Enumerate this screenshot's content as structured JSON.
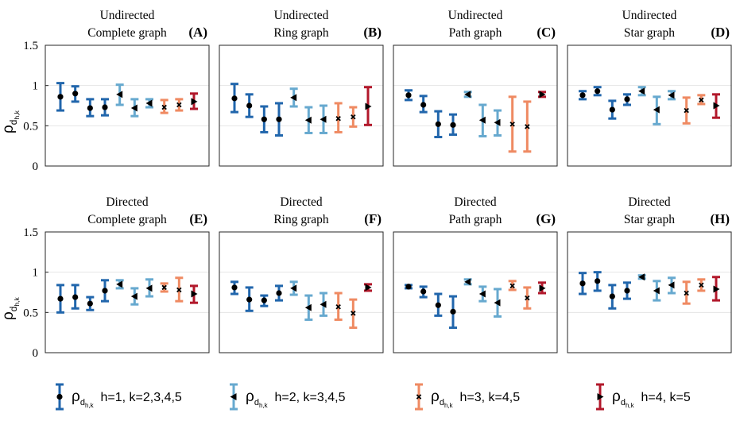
{
  "chart_data": {
    "type": "errorbar",
    "ylim": [
      0,
      1.5
    ],
    "yticks": [
      "0",
      "0.5",
      "1",
      "1.5"
    ],
    "ylabel": "ρ",
    "ylabel_sub": "d",
    "ylabel_subsub": "h,k",
    "grid": true,
    "group_colors": [
      "#2166ac",
      "#67a9cf",
      "#ef8a62",
      "#b2182b"
    ],
    "group_markers": [
      "circle",
      "triangle-left",
      "x",
      "triangle-right"
    ],
    "panels": [
      {
        "id": "A",
        "label": "(A)",
        "title1": "Undirected",
        "title2": "Complete graph",
        "points": [
          {
            "g": 0,
            "m": 0.86,
            "lo": 0.69,
            "hi": 1.03
          },
          {
            "g": 0,
            "m": 0.9,
            "lo": 0.8,
            "hi": 0.99
          },
          {
            "g": 0,
            "m": 0.72,
            "lo": 0.62,
            "hi": 0.83
          },
          {
            "g": 0,
            "m": 0.73,
            "lo": 0.63,
            "hi": 0.83
          },
          {
            "g": 1,
            "m": 0.89,
            "lo": 0.76,
            "hi": 1.01
          },
          {
            "g": 1,
            "m": 0.72,
            "lo": 0.62,
            "hi": 0.83
          },
          {
            "g": 1,
            "m": 0.78,
            "lo": 0.73,
            "hi": 0.83
          },
          {
            "g": 2,
            "m": 0.73,
            "lo": 0.66,
            "hi": 0.82
          },
          {
            "g": 2,
            "m": 0.76,
            "lo": 0.69,
            "hi": 0.83
          },
          {
            "g": 3,
            "m": 0.8,
            "lo": 0.71,
            "hi": 0.9
          }
        ]
      },
      {
        "id": "B",
        "label": "(B)",
        "title1": "Undirected",
        "title2": "Ring graph",
        "points": [
          {
            "g": 0,
            "m": 0.84,
            "lo": 0.67,
            "hi": 1.02
          },
          {
            "g": 0,
            "m": 0.75,
            "lo": 0.61,
            "hi": 0.89
          },
          {
            "g": 0,
            "m": 0.58,
            "lo": 0.42,
            "hi": 0.74
          },
          {
            "g": 0,
            "m": 0.58,
            "lo": 0.38,
            "hi": 0.78
          },
          {
            "g": 1,
            "m": 0.85,
            "lo": 0.74,
            "hi": 0.96
          },
          {
            "g": 1,
            "m": 0.57,
            "lo": 0.41,
            "hi": 0.73
          },
          {
            "g": 1,
            "m": 0.58,
            "lo": 0.41,
            "hi": 0.75
          },
          {
            "g": 2,
            "m": 0.59,
            "lo": 0.42,
            "hi": 0.78
          },
          {
            "g": 2,
            "m": 0.61,
            "lo": 0.49,
            "hi": 0.73
          },
          {
            "g": 3,
            "m": 0.74,
            "lo": 0.51,
            "hi": 0.98
          }
        ]
      },
      {
        "id": "C",
        "label": "(C)",
        "title1": "Undirected",
        "title2": "Path graph",
        "points": [
          {
            "g": 0,
            "m": 0.88,
            "lo": 0.82,
            "hi": 0.94
          },
          {
            "g": 0,
            "m": 0.76,
            "lo": 0.67,
            "hi": 0.87
          },
          {
            "g": 0,
            "m": 0.52,
            "lo": 0.36,
            "hi": 0.68
          },
          {
            "g": 0,
            "m": 0.51,
            "lo": 0.39,
            "hi": 0.64
          },
          {
            "g": 1,
            "m": 0.89,
            "lo": 0.86,
            "hi": 0.92
          },
          {
            "g": 1,
            "m": 0.57,
            "lo": 0.37,
            "hi": 0.76
          },
          {
            "g": 1,
            "m": 0.54,
            "lo": 0.38,
            "hi": 0.69
          },
          {
            "g": 2,
            "m": 0.52,
            "lo": 0.18,
            "hi": 0.86
          },
          {
            "g": 2,
            "m": 0.49,
            "lo": 0.18,
            "hi": 0.8
          },
          {
            "g": 3,
            "m": 0.89,
            "lo": 0.86,
            "hi": 0.92
          }
        ]
      },
      {
        "id": "D",
        "label": "(D)",
        "title1": "Undirected",
        "title2": "Star graph",
        "points": [
          {
            "g": 0,
            "m": 0.88,
            "lo": 0.83,
            "hi": 0.93
          },
          {
            "g": 0,
            "m": 0.93,
            "lo": 0.88,
            "hi": 0.98
          },
          {
            "g": 0,
            "m": 0.7,
            "lo": 0.59,
            "hi": 0.81
          },
          {
            "g": 0,
            "m": 0.83,
            "lo": 0.76,
            "hi": 0.89
          },
          {
            "g": 1,
            "m": 0.93,
            "lo": 0.88,
            "hi": 0.98
          },
          {
            "g": 1,
            "m": 0.7,
            "lo": 0.52,
            "hi": 0.86
          },
          {
            "g": 1,
            "m": 0.88,
            "lo": 0.83,
            "hi": 0.93
          },
          {
            "g": 2,
            "m": 0.69,
            "lo": 0.53,
            "hi": 0.85
          },
          {
            "g": 2,
            "m": 0.82,
            "lo": 0.77,
            "hi": 0.88
          },
          {
            "g": 3,
            "m": 0.75,
            "lo": 0.6,
            "hi": 0.89
          }
        ]
      },
      {
        "id": "E",
        "label": "(E)",
        "title1": "Directed",
        "title2": "Complete graph",
        "points": [
          {
            "g": 0,
            "m": 0.67,
            "lo": 0.5,
            "hi": 0.84
          },
          {
            "g": 0,
            "m": 0.69,
            "lo": 0.55,
            "hi": 0.84
          },
          {
            "g": 0,
            "m": 0.61,
            "lo": 0.53,
            "hi": 0.69
          },
          {
            "g": 0,
            "m": 0.77,
            "lo": 0.64,
            "hi": 0.9
          },
          {
            "g": 1,
            "m": 0.85,
            "lo": 0.8,
            "hi": 0.9
          },
          {
            "g": 1,
            "m": 0.7,
            "lo": 0.6,
            "hi": 0.8
          },
          {
            "g": 1,
            "m": 0.8,
            "lo": 0.7,
            "hi": 0.91
          },
          {
            "g": 2,
            "m": 0.81,
            "lo": 0.76,
            "hi": 0.86
          },
          {
            "g": 2,
            "m": 0.78,
            "lo": 0.64,
            "hi": 0.93
          },
          {
            "g": 3,
            "m": 0.73,
            "lo": 0.62,
            "hi": 0.83
          }
        ]
      },
      {
        "id": "F",
        "label": "(F)",
        "title1": "Directed",
        "title2": "Ring graph",
        "points": [
          {
            "g": 0,
            "m": 0.81,
            "lo": 0.73,
            "hi": 0.88
          },
          {
            "g": 0,
            "m": 0.66,
            "lo": 0.52,
            "hi": 0.81
          },
          {
            "g": 0,
            "m": 0.65,
            "lo": 0.58,
            "hi": 0.71
          },
          {
            "g": 0,
            "m": 0.74,
            "lo": 0.65,
            "hi": 0.83
          },
          {
            "g": 1,
            "m": 0.8,
            "lo": 0.72,
            "hi": 0.88
          },
          {
            "g": 1,
            "m": 0.56,
            "lo": 0.41,
            "hi": 0.71
          },
          {
            "g": 1,
            "m": 0.6,
            "lo": 0.46,
            "hi": 0.74
          },
          {
            "g": 2,
            "m": 0.57,
            "lo": 0.41,
            "hi": 0.74
          },
          {
            "g": 2,
            "m": 0.49,
            "lo": 0.31,
            "hi": 0.66
          },
          {
            "g": 3,
            "m": 0.81,
            "lo": 0.77,
            "hi": 0.85
          }
        ]
      },
      {
        "id": "G",
        "label": "(G)",
        "title1": "Directed",
        "title2": "Path graph",
        "points": [
          {
            "g": 0,
            "m": 0.82,
            "lo": 0.8,
            "hi": 0.84
          },
          {
            "g": 0,
            "m": 0.76,
            "lo": 0.69,
            "hi": 0.82
          },
          {
            "g": 0,
            "m": 0.59,
            "lo": 0.46,
            "hi": 0.73
          },
          {
            "g": 0,
            "m": 0.51,
            "lo": 0.31,
            "hi": 0.7
          },
          {
            "g": 1,
            "m": 0.88,
            "lo": 0.85,
            "hi": 0.91
          },
          {
            "g": 1,
            "m": 0.73,
            "lo": 0.64,
            "hi": 0.82
          },
          {
            "g": 1,
            "m": 0.62,
            "lo": 0.45,
            "hi": 0.79
          },
          {
            "g": 2,
            "m": 0.83,
            "lo": 0.78,
            "hi": 0.89
          },
          {
            "g": 2,
            "m": 0.68,
            "lo": 0.55,
            "hi": 0.81
          },
          {
            "g": 3,
            "m": 0.8,
            "lo": 0.74,
            "hi": 0.87
          }
        ]
      },
      {
        "id": "H",
        "label": "(H)",
        "title1": "Directed",
        "title2": "Star graph",
        "points": [
          {
            "g": 0,
            "m": 0.86,
            "lo": 0.73,
            "hi": 0.99
          },
          {
            "g": 0,
            "m": 0.89,
            "lo": 0.77,
            "hi": 1.0
          },
          {
            "g": 0,
            "m": 0.7,
            "lo": 0.55,
            "hi": 0.84
          },
          {
            "g": 0,
            "m": 0.77,
            "lo": 0.67,
            "hi": 0.87
          },
          {
            "g": 1,
            "m": 0.94,
            "lo": 0.92,
            "hi": 0.96
          },
          {
            "g": 1,
            "m": 0.77,
            "lo": 0.65,
            "hi": 0.89
          },
          {
            "g": 1,
            "m": 0.84,
            "lo": 0.74,
            "hi": 0.93
          },
          {
            "g": 2,
            "m": 0.74,
            "lo": 0.61,
            "hi": 0.88
          },
          {
            "g": 2,
            "m": 0.84,
            "lo": 0.77,
            "hi": 0.91
          },
          {
            "g": 3,
            "m": 0.79,
            "lo": 0.65,
            "hi": 0.94
          }
        ]
      }
    ],
    "legend": [
      {
        "g": 0,
        "rho": "ρ",
        "sub": "d",
        "subsub": "h,k",
        "text": "h=1, k=2,3,4,5"
      },
      {
        "g": 1,
        "rho": "ρ",
        "sub": "d",
        "subsub": "h,k",
        "text": "h=2, k=3,4,5"
      },
      {
        "g": 2,
        "rho": "ρ",
        "sub": "d",
        "subsub": "h,k",
        "text": "h=3, k=4,5"
      },
      {
        "g": 3,
        "rho": "ρ",
        "sub": "d",
        "subsub": "h,k",
        "text": "h=4, k=5"
      }
    ]
  }
}
